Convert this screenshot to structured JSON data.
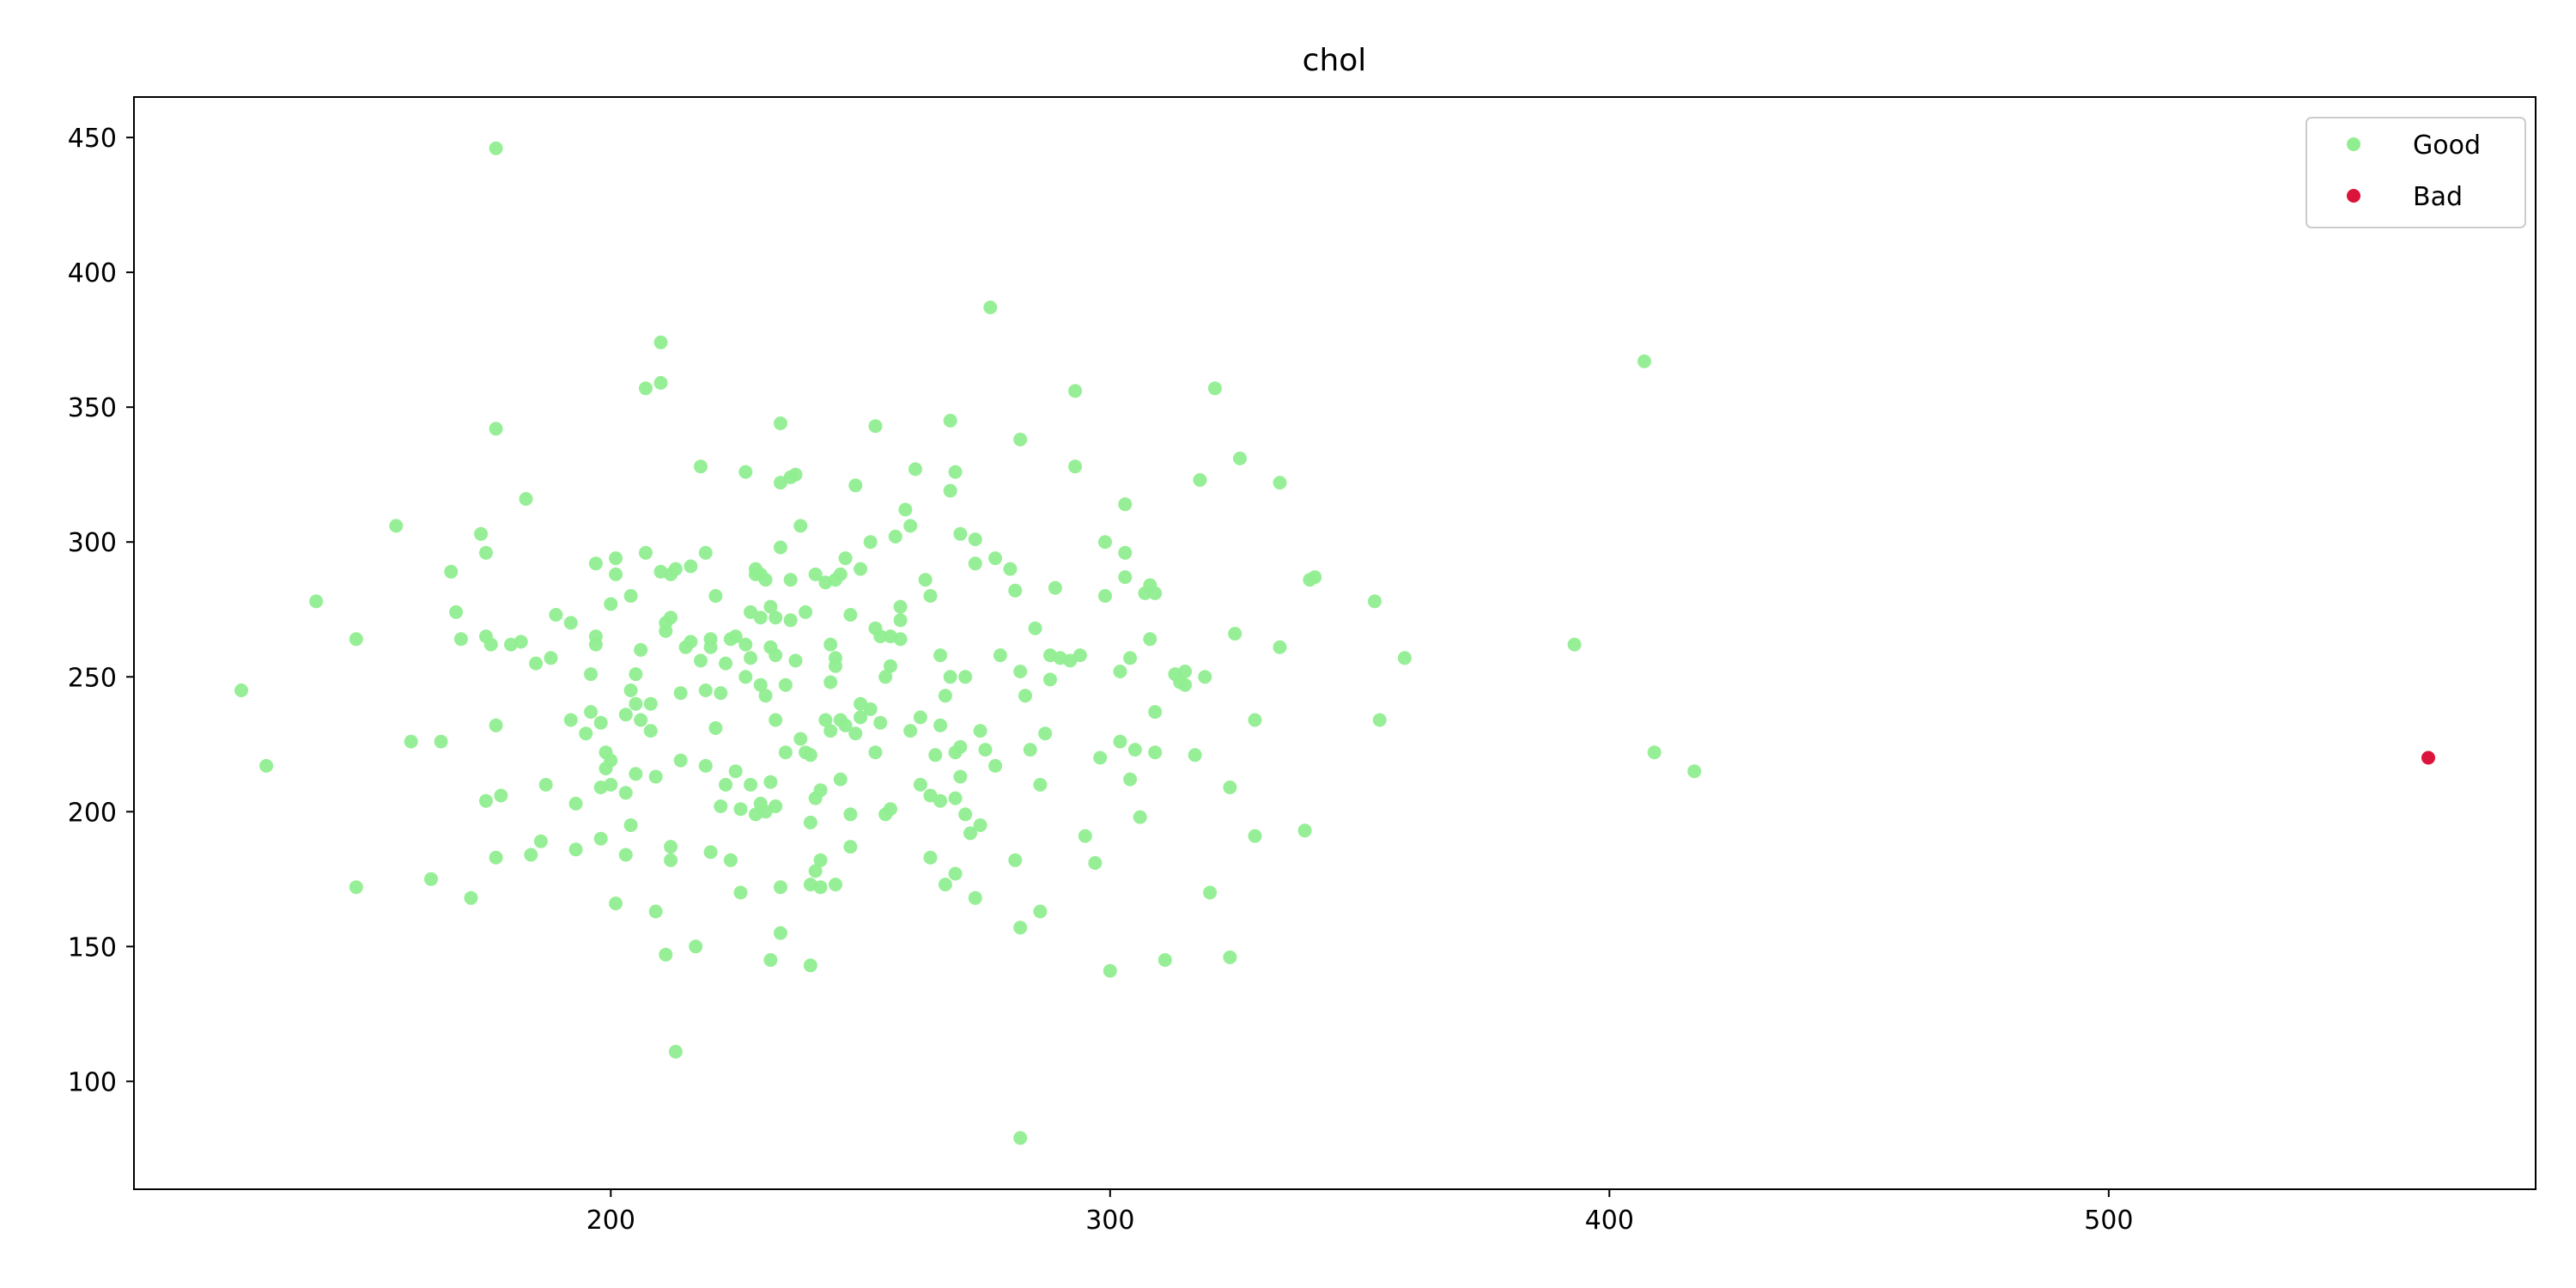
{
  "chart_data": {
    "type": "scatter",
    "title": "chol",
    "xlabel": "",
    "ylabel": "",
    "xlim": [
      104.5,
      585.5
    ],
    "ylim": [
      60.0,
      465.0
    ],
    "xticks": [
      200,
      300,
      400,
      500
    ],
    "yticks": [
      100,
      150,
      200,
      250,
      300,
      350,
      400,
      450
    ],
    "grid": false,
    "legend_position": "top-right",
    "series": [
      {
        "name": "Good",
        "color": "#90ee90",
        "points": [
          [
            126,
            245
          ],
          [
            131,
            217
          ],
          [
            141,
            278
          ],
          [
            149,
            264
          ],
          [
            149,
            172
          ],
          [
            157,
            306
          ],
          [
            160,
            226
          ],
          [
            164,
            175
          ],
          [
            166,
            226
          ],
          [
            168,
            289
          ],
          [
            169,
            274
          ],
          [
            170,
            264
          ],
          [
            172,
            168
          ],
          [
            174,
            303
          ],
          [
            175,
            296
          ],
          [
            175,
            265
          ],
          [
            175,
            204
          ],
          [
            176,
            262
          ],
          [
            177,
            342
          ],
          [
            177,
            232
          ],
          [
            177,
            183
          ],
          [
            177,
            446
          ],
          [
            178,
            206
          ],
          [
            180,
            262
          ],
          [
            182,
            263
          ],
          [
            183,
            316
          ],
          [
            184,
            184
          ],
          [
            185,
            255
          ],
          [
            186,
            189
          ],
          [
            187,
            210
          ],
          [
            188,
            257
          ],
          [
            189,
            273
          ],
          [
            192,
            270
          ],
          [
            192,
            234
          ],
          [
            193,
            203
          ],
          [
            193,
            186
          ],
          [
            195,
            229
          ],
          [
            196,
            251
          ],
          [
            196,
            237
          ],
          [
            197,
            265
          ],
          [
            197,
            262
          ],
          [
            197,
            292
          ],
          [
            198,
            233
          ],
          [
            198,
            209
          ],
          [
            198,
            190
          ],
          [
            199,
            216
          ],
          [
            199,
            222
          ],
          [
            200,
            219
          ],
          [
            200,
            210
          ],
          [
            200,
            277
          ],
          [
            201,
            294
          ],
          [
            201,
            288
          ],
          [
            201,
            166
          ],
          [
            203,
            236
          ],
          [
            203,
            184
          ],
          [
            203,
            207
          ],
          [
            204,
            280
          ],
          [
            204,
            245
          ],
          [
            204,
            195
          ],
          [
            205,
            251
          ],
          [
            205,
            240
          ],
          [
            205,
            214
          ],
          [
            206,
            260
          ],
          [
            206,
            234
          ],
          [
            207,
            357
          ],
          [
            207,
            296
          ],
          [
            208,
            230
          ],
          [
            208,
            240
          ],
          [
            209,
            163
          ],
          [
            209,
            213
          ],
          [
            210,
            359
          ],
          [
            210,
            289
          ],
          [
            210,
            374
          ],
          [
            211,
            147
          ],
          [
            211,
            267
          ],
          [
            211,
            270
          ],
          [
            212,
            288
          ],
          [
            212,
            272
          ],
          [
            212,
            187
          ],
          [
            212,
            182
          ],
          [
            213,
            111
          ],
          [
            213,
            290
          ],
          [
            214,
            219
          ],
          [
            214,
            244
          ],
          [
            215,
            261
          ],
          [
            216,
            291
          ],
          [
            216,
            263
          ],
          [
            217,
            150
          ],
          [
            218,
            328
          ],
          [
            218,
            256
          ],
          [
            219,
            296
          ],
          [
            219,
            245
          ],
          [
            219,
            217
          ],
          [
            220,
            185
          ],
          [
            220,
            264
          ],
          [
            220,
            261
          ],
          [
            221,
            280
          ],
          [
            221,
            231
          ],
          [
            222,
            202
          ],
          [
            222,
            244
          ],
          [
            223,
            255
          ],
          [
            223,
            210
          ],
          [
            224,
            182
          ],
          [
            224,
            264
          ],
          [
            225,
            265
          ],
          [
            225,
            215
          ],
          [
            226,
            170
          ],
          [
            226,
            201
          ],
          [
            227,
            262
          ],
          [
            227,
            326
          ],
          [
            227,
            250
          ],
          [
            228,
            210
          ],
          [
            228,
            257
          ],
          [
            228,
            274
          ],
          [
            229,
            199
          ],
          [
            229,
            290
          ],
          [
            229,
            288
          ],
          [
            230,
            288
          ],
          [
            230,
            272
          ],
          [
            230,
            247
          ],
          [
            230,
            203
          ],
          [
            231,
            286
          ],
          [
            231,
            243
          ],
          [
            231,
            200
          ],
          [
            232,
            211
          ],
          [
            232,
            145
          ],
          [
            232,
            276
          ],
          [
            232,
            261
          ],
          [
            233,
            272
          ],
          [
            233,
            258
          ],
          [
            233,
            202
          ],
          [
            233,
            234
          ],
          [
            234,
            155
          ],
          [
            234,
            298
          ],
          [
            234,
            322
          ],
          [
            234,
            344
          ],
          [
            234,
            172
          ],
          [
            235,
            247
          ],
          [
            235,
            222
          ],
          [
            236,
            324
          ],
          [
            236,
            286
          ],
          [
            236,
            271
          ],
          [
            237,
            256
          ],
          [
            237,
            325
          ],
          [
            238,
            306
          ],
          [
            238,
            227
          ],
          [
            239,
            222
          ],
          [
            239,
            274
          ],
          [
            240,
            221
          ],
          [
            240,
            173
          ],
          [
            240,
            143
          ],
          [
            240,
            196
          ],
          [
            241,
            288
          ],
          [
            241,
            205
          ],
          [
            241,
            178
          ],
          [
            242,
            182
          ],
          [
            242,
            172
          ],
          [
            242,
            208
          ],
          [
            243,
            285
          ],
          [
            243,
            234
          ],
          [
            244,
            230
          ],
          [
            244,
            262
          ],
          [
            244,
            248
          ],
          [
            245,
            173
          ],
          [
            245,
            257
          ],
          [
            245,
            254
          ],
          [
            245,
            286
          ],
          [
            246,
            212
          ],
          [
            246,
            234
          ],
          [
            246,
            288
          ],
          [
            247,
            294
          ],
          [
            247,
            232
          ],
          [
            248,
            199
          ],
          [
            248,
            187
          ],
          [
            248,
            273
          ],
          [
            249,
            321
          ],
          [
            249,
            229
          ],
          [
            250,
            240
          ],
          [
            250,
            235
          ],
          [
            250,
            290
          ],
          [
            252,
            300
          ],
          [
            252,
            238
          ],
          [
            253,
            222
          ],
          [
            253,
            343
          ],
          [
            253,
            268
          ],
          [
            254,
            265
          ],
          [
            254,
            233
          ],
          [
            255,
            199
          ],
          [
            255,
            250
          ],
          [
            256,
            265
          ],
          [
            256,
            201
          ],
          [
            256,
            254
          ],
          [
            257,
            302
          ],
          [
            258,
            276
          ],
          [
            258,
            271
          ],
          [
            258,
            264
          ],
          [
            259,
            312
          ],
          [
            260,
            306
          ],
          [
            260,
            230
          ],
          [
            261,
            327
          ],
          [
            262,
            210
          ],
          [
            262,
            235
          ],
          [
            263,
            286
          ],
          [
            264,
            280
          ],
          [
            264,
            206
          ],
          [
            264,
            183
          ],
          [
            265,
            221
          ],
          [
            266,
            204
          ],
          [
            266,
            258
          ],
          [
            266,
            232
          ],
          [
            267,
            243
          ],
          [
            267,
            173
          ],
          [
            268,
            250
          ],
          [
            268,
            319
          ],
          [
            268,
            345
          ],
          [
            269,
            177
          ],
          [
            269,
            326
          ],
          [
            269,
            222
          ],
          [
            269,
            205
          ],
          [
            270,
            213
          ],
          [
            270,
            303
          ],
          [
            270,
            224
          ],
          [
            271,
            199
          ],
          [
            271,
            250
          ],
          [
            272,
            192
          ],
          [
            273,
            168
          ],
          [
            273,
            292
          ],
          [
            273,
            301
          ],
          [
            274,
            230
          ],
          [
            274,
            195
          ],
          [
            275,
            223
          ],
          [
            276,
            387
          ],
          [
            277,
            217
          ],
          [
            277,
            294
          ],
          [
            278,
            258
          ],
          [
            280,
            290
          ],
          [
            281,
            282
          ],
          [
            281,
            182
          ],
          [
            282,
            157
          ],
          [
            282,
            79
          ],
          [
            282,
            338
          ],
          [
            282,
            252
          ],
          [
            283,
            243
          ],
          [
            284,
            223
          ],
          [
            285,
            268
          ],
          [
            286,
            210
          ],
          [
            286,
            163
          ],
          [
            287,
            229
          ],
          [
            288,
            249
          ],
          [
            288,
            258
          ],
          [
            289,
            283
          ],
          [
            290,
            257
          ],
          [
            292,
            256
          ],
          [
            293,
            356
          ],
          [
            293,
            328
          ],
          [
            294,
            258
          ],
          [
            295,
            191
          ],
          [
            297,
            181
          ],
          [
            298,
            220
          ],
          [
            299,
            280
          ],
          [
            299,
            300
          ],
          [
            300,
            141
          ],
          [
            302,
            252
          ],
          [
            302,
            226
          ],
          [
            303,
            296
          ],
          [
            303,
            287
          ],
          [
            303,
            314
          ],
          [
            304,
            212
          ],
          [
            304,
            257
          ],
          [
            305,
            223
          ],
          [
            306,
            198
          ],
          [
            307,
            281
          ],
          [
            308,
            284
          ],
          [
            308,
            264
          ],
          [
            309,
            281
          ],
          [
            309,
            237
          ],
          [
            309,
            222
          ],
          [
            311,
            145
          ],
          [
            313,
            251
          ],
          [
            314,
            248
          ],
          [
            315,
            247
          ],
          [
            315,
            252
          ],
          [
            317,
            221
          ],
          [
            318,
            323
          ],
          [
            319,
            250
          ],
          [
            320,
            170
          ],
          [
            321,
            357
          ],
          [
            324,
            209
          ],
          [
            324,
            146
          ],
          [
            325,
            266
          ],
          [
            326,
            331
          ],
          [
            329,
            234
          ],
          [
            329,
            191
          ],
          [
            334,
            322
          ],
          [
            334,
            261
          ],
          [
            339,
            193
          ],
          [
            340,
            286
          ],
          [
            341,
            287
          ],
          [
            353,
            278
          ],
          [
            354,
            234
          ],
          [
            359,
            257
          ],
          [
            393,
            262
          ],
          [
            407,
            367
          ],
          [
            409,
            222
          ],
          [
            417,
            215
          ]
        ]
      },
      {
        "name": "Bad",
        "color": "#dc143c",
        "points": [
          [
            564,
            220
          ]
        ]
      }
    ]
  }
}
